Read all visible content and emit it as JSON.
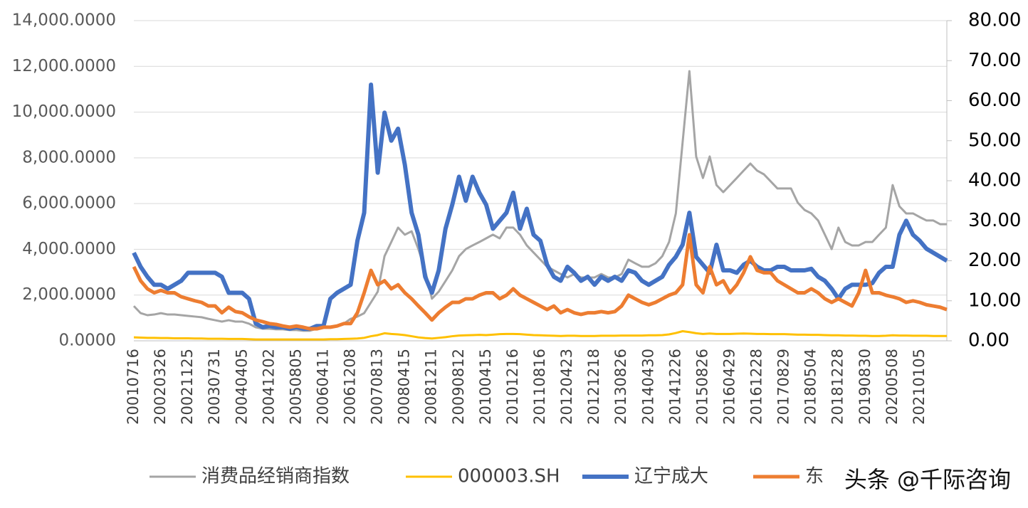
{
  "chart_data": {
    "type": "line",
    "categories": [
      "20010716",
      null,
      null,
      null,
      "20020326",
      null,
      null,
      null,
      "20021125",
      null,
      null,
      null,
      "20030731",
      null,
      null,
      null,
      "20040405",
      null,
      null,
      null,
      "20041202",
      null,
      null,
      null,
      "20050805",
      null,
      null,
      null,
      "20060411",
      null,
      null,
      null,
      "20061208",
      null,
      null,
      null,
      "20070813",
      null,
      null,
      null,
      "20080415",
      null,
      null,
      null,
      "20081211",
      null,
      null,
      null,
      "20090812",
      null,
      null,
      null,
      "20100415",
      null,
      null,
      null,
      "20101216",
      null,
      null,
      null,
      "20110816",
      null,
      null,
      null,
      "20120423",
      null,
      null,
      null,
      "20121218",
      null,
      null,
      null,
      "20130826",
      null,
      null,
      null,
      "20140430",
      null,
      null,
      null,
      "20141226",
      null,
      null,
      null,
      "20150826",
      null,
      null,
      null,
      "20160429",
      null,
      null,
      null,
      "20161228",
      null,
      null,
      null,
      "20170829",
      null,
      null,
      null,
      "20180504",
      null,
      null,
      null,
      "20181228",
      null,
      null,
      null,
      "20190830",
      null,
      null,
      null,
      "20200508",
      null,
      null,
      null,
      "20210105",
      null,
      null,
      null,
      null
    ],
    "series": [
      {
        "name": "消费品经销商指数",
        "color": "#a5a5a5",
        "values": [
          1520,
          1210,
          1120,
          1150,
          1210,
          1150,
          1150,
          1120,
          1090,
          1060,
          1030,
          960,
          900,
          840,
          900,
          840,
          840,
          750,
          590,
          530,
          530,
          500,
          500,
          470,
          470,
          440,
          440,
          530,
          590,
          590,
          650,
          750,
          960,
          1060,
          1210,
          1680,
          2150,
          3700,
          4320,
          4950,
          4640,
          4790,
          4010,
          3080,
          1840,
          2150,
          2610,
          3080,
          3700,
          4010,
          4170,
          4320,
          4480,
          4640,
          4480,
          4950,
          4950,
          4640,
          4170,
          3860,
          3550,
          3240,
          3080,
          2920,
          2770,
          2920,
          2770,
          2770,
          2770,
          2920,
          2770,
          2770,
          2920,
          3550,
          3390,
          3240,
          3240,
          3390,
          3700,
          4320,
          5570,
          8680,
          11790,
          8060,
          7120,
          8060,
          6810,
          6500,
          6810,
          7120,
          7440,
          7750,
          7440,
          7280,
          6970,
          6660,
          6660,
          6660,
          6040,
          5720,
          5570,
          5260,
          4640,
          4010,
          4950,
          4320,
          4170,
          4170,
          4320,
          4320,
          4640,
          4950,
          6810,
          5880,
          5570,
          5570,
          5410,
          5260,
          5260,
          5100,
          5100
        ]
      },
      {
        "name": "000003.SH",
        "color": "#ffc000",
        "values": [
          150,
          140,
          130,
          130,
          120,
          120,
          110,
          110,
          110,
          100,
          100,
          90,
          90,
          90,
          80,
          80,
          80,
          70,
          60,
          60,
          60,
          60,
          60,
          60,
          60,
          60,
          60,
          60,
          60,
          70,
          70,
          80,
          90,
          100,
          130,
          200,
          250,
          330,
          300,
          280,
          250,
          200,
          150,
          120,
          100,
          130,
          160,
          200,
          230,
          240,
          250,
          260,
          250,
          270,
          290,
          300,
          300,
          290,
          270,
          250,
          240,
          230,
          220,
          210,
          220,
          220,
          210,
          210,
          210,
          220,
          220,
          220,
          230,
          230,
          230,
          230,
          240,
          240,
          250,
          280,
          340,
          420,
          380,
          330,
          300,
          320,
          300,
          300,
          300,
          310,
          320,
          310,
          300,
          300,
          290,
          290,
          290,
          280,
          270,
          270,
          260,
          260,
          250,
          240,
          240,
          230,
          230,
          220,
          220,
          210,
          210,
          220,
          240,
          230,
          230,
          220,
          220,
          220,
          210,
          210,
          210
        ]
      },
      {
        "name": "辽宁成大",
        "color": "#4472c4",
        "axis": "y2",
        "values": [
          22,
          18.5,
          16,
          14,
          14,
          13,
          14,
          15,
          17,
          17,
          17,
          17,
          17,
          16,
          12,
          12,
          12,
          10.5,
          4.3,
          3.4,
          3.7,
          3.4,
          3.4,
          3,
          3.4,
          3,
          3,
          3.7,
          3.7,
          10.5,
          12,
          13,
          14,
          25,
          32,
          64,
          42,
          57,
          50,
          53,
          44,
          32,
          26.5,
          16,
          12,
          17.6,
          28,
          34,
          41,
          35,
          41,
          37,
          34,
          28,
          30,
          32,
          37,
          28,
          33,
          26.5,
          25,
          19,
          16,
          15,
          18.5,
          17,
          15,
          16,
          14,
          16,
          15,
          16,
          15,
          17.6,
          17,
          15,
          14,
          15,
          16,
          19,
          21,
          24,
          32,
          21,
          19,
          17,
          24,
          17.6,
          17.6,
          17,
          19,
          20,
          18.5,
          17.6,
          17.6,
          18.5,
          18.5,
          17.6,
          17.6,
          17.6,
          18,
          16,
          15,
          13,
          10.5,
          13,
          14,
          14,
          14,
          14.4,
          17,
          18.5,
          18.5,
          26.5,
          30,
          26.5,
          25,
          23,
          22,
          21,
          20
        ]
      },
      {
        "name": "东",
        "color": "#ed7d31",
        "axis": "y2",
        "values": [
          18.5,
          15,
          13,
          12,
          12.6,
          12,
          12,
          11,
          10.5,
          10,
          9.6,
          8.7,
          8.7,
          7,
          8.4,
          7.3,
          7,
          6,
          5.2,
          4.8,
          4.3,
          4.1,
          3.7,
          3.4,
          3.7,
          3.4,
          3,
          3,
          3.4,
          3.4,
          3.7,
          4.3,
          4.3,
          7,
          12,
          17.6,
          14,
          15,
          13,
          14,
          12,
          10.5,
          8.7,
          7,
          5.2,
          7,
          8.4,
          9.6,
          9.6,
          10.5,
          10.5,
          11.4,
          12,
          12,
          10.5,
          11.4,
          13,
          11.4,
          10.5,
          9.6,
          8.7,
          7.8,
          8.7,
          7,
          7.8,
          7,
          6.6,
          7,
          7,
          7.3,
          7,
          7.3,
          8.7,
          11.4,
          10.5,
          9.6,
          9,
          9.6,
          10.5,
          11.4,
          12,
          14,
          26.5,
          14,
          12,
          18.5,
          14,
          15,
          12,
          14,
          17,
          21,
          17.6,
          17,
          17,
          15,
          14,
          13,
          12,
          12,
          13,
          12,
          10.5,
          9.6,
          10.5,
          9.6,
          8.7,
          12,
          17.6,
          12,
          12,
          11.4,
          11,
          10.5,
          9.6,
          10,
          9.6,
          9,
          8.7,
          8.4,
          7.8
        ]
      }
    ],
    "ylim": [
      0,
      14000
    ],
    "yticks": [
      {
        "value": 0,
        "label": "0.0000"
      },
      {
        "value": 2000,
        "label": "2,000.0000"
      },
      {
        "value": 4000,
        "label": "4,000.0000"
      },
      {
        "value": 6000,
        "label": "6,000.0000"
      },
      {
        "value": 8000,
        "label": "8,000.0000"
      },
      {
        "value": 10000,
        "label": "10,000.0000"
      },
      {
        "value": 12000,
        "label": "12,000.0000"
      },
      {
        "value": 14000,
        "label": "14,000.0000"
      }
    ],
    "y2lim": [
      0,
      80
    ],
    "y2ticks": [
      {
        "value": 0,
        "label": "0.00"
      },
      {
        "value": 10,
        "label": "10.00"
      },
      {
        "value": 20,
        "label": "20.00"
      },
      {
        "value": 30,
        "label": "30.00"
      },
      {
        "value": 40,
        "label": "40.00"
      },
      {
        "value": 50,
        "label": "50.00"
      },
      {
        "value": 60,
        "label": "60.00"
      },
      {
        "value": 70,
        "label": "70.00"
      },
      {
        "value": 80,
        "label": "80.00"
      }
    ],
    "grid": true,
    "legend": "bottom",
    "annotations": [
      "头条 @千际咨询"
    ]
  }
}
